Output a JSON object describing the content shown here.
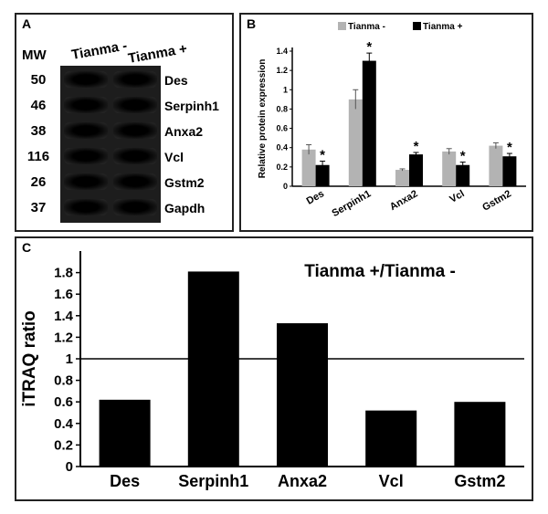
{
  "panel_a": {
    "label": "A",
    "mw_header": "MW",
    "lanes": [
      "Tianma -",
      "Tianma +"
    ],
    "rows": [
      {
        "mw": "50",
        "protein": "Des"
      },
      {
        "mw": "46",
        "protein": "Serpinh1"
      },
      {
        "mw": "38",
        "protein": "Anxa2"
      },
      {
        "mw": "116",
        "protein": "Vcl"
      },
      {
        "mw": "26",
        "protein": "Gstm2"
      },
      {
        "mw": "37",
        "protein": "Gapdh"
      }
    ]
  },
  "chart_data": [
    {
      "panel": "B",
      "type": "bar",
      "ylabel": "Relative protein expression",
      "ylim": [
        0,
        1.4
      ],
      "yticks": [
        "0",
        "0.2",
        "0.4",
        "0.6",
        "0.8",
        "1",
        "1.2",
        "1.4"
      ],
      "categories": [
        "Des",
        "Serpinh1",
        "Anxa2",
        "Vcl",
        "Gstm2"
      ],
      "legend_position": "top",
      "series": [
        {
          "name": "Tianma -",
          "color": "#b3b3b3",
          "values": [
            0.38,
            0.9,
            0.17,
            0.36,
            0.42
          ],
          "errors": [
            0.05,
            0.1,
            0.01,
            0.03,
            0.03
          ]
        },
        {
          "name": "Tianma +",
          "color": "#000000",
          "values": [
            0.22,
            1.3,
            0.33,
            0.22,
            0.31
          ],
          "errors": [
            0.04,
            0.08,
            0.02,
            0.03,
            0.03
          ]
        }
      ],
      "significance_marker": "*",
      "significant": [
        "Des",
        "Serpinh1",
        "Anxa2",
        "Vcl",
        "Gstm2"
      ]
    },
    {
      "panel": "C",
      "type": "bar",
      "title": "Tianma +/Tianma -",
      "ylabel": "iTRAQ ratio",
      "ylim": [
        0,
        2
      ],
      "yticks": [
        "0",
        "0.2",
        "0.4",
        "0.6",
        "0.8",
        "1",
        "1.2",
        "1.4",
        "1.6",
        "1.8"
      ],
      "reference_line": 1,
      "categories": [
        "Des",
        "Serpinh1",
        "Anxa2",
        "Vcl",
        "Gstm2"
      ],
      "values": [
        0.62,
        1.81,
        1.33,
        0.52,
        0.6
      ],
      "color": "#000000"
    }
  ],
  "panel_labels": {
    "b": "B",
    "c": "C"
  }
}
